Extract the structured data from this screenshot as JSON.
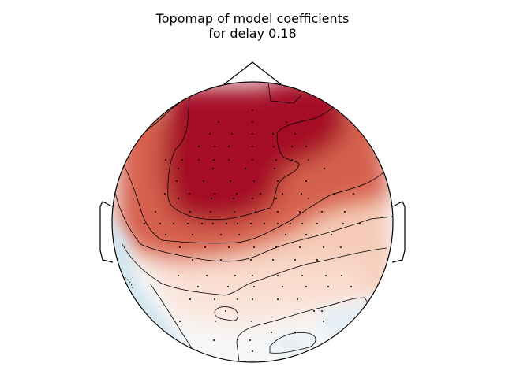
{
  "title": {
    "line1": "Topomap of model coefficients",
    "line2": "for delay 0.18"
  },
  "colors": {
    "positive_strong": "#a50f26",
    "positive_mid": "#d6604d",
    "positive_light": "#f4a582",
    "near_zero": "#f7f7f7",
    "negative_light": "#d1e5f0",
    "contour": "#000000",
    "sensor": "#000000",
    "outline": "#000000"
  },
  "map": {
    "colormap": "RdBu_r",
    "sensor_count": 94,
    "dominant_region": "frontal-left",
    "negative_region": "left-temporal"
  }
}
